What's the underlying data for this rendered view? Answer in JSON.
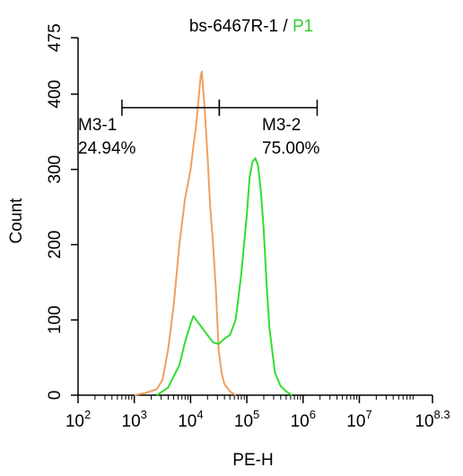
{
  "chart_data": {
    "type": "line",
    "title": "bs-6467R-1",
    "title_separator": " / ",
    "title_highlight": "P1",
    "xlabel": "PE-H",
    "ylabel": "Count",
    "x_scale": "log",
    "xlim": [
      2,
      8.3
    ],
    "ylim": [
      0,
      475
    ],
    "x_ticks": [
      {
        "base": "10",
        "exp": "2"
      },
      {
        "base": "10",
        "exp": "3"
      },
      {
        "base": "10",
        "exp": "4"
      },
      {
        "base": "10",
        "exp": "5"
      },
      {
        "base": "10",
        "exp": "6"
      },
      {
        "base": "10",
        "exp": "7"
      },
      {
        "base": "10",
        "exp": "8.3"
      }
    ],
    "y_ticks": [
      "0",
      "100",
      "200",
      "300",
      "400",
      "475"
    ],
    "grid": false,
    "colors": {
      "orange": "#f0a060",
      "green": "#33dd33",
      "title_highlight": "#33cc33"
    },
    "series": [
      {
        "color": "#f0a060",
        "x": [
          3.0,
          3.2,
          3.4,
          3.5,
          3.6,
          3.7,
          3.8,
          3.9,
          4.0,
          4.05,
          4.1,
          4.15,
          4.18,
          4.2,
          4.25,
          4.3,
          4.35,
          4.4,
          4.45,
          4.5,
          4.55,
          4.6,
          4.7,
          4.8
        ],
        "y": [
          0,
          3,
          8,
          20,
          60,
          120,
          200,
          260,
          300,
          330,
          360,
          400,
          425,
          430,
          380,
          320,
          250,
          200,
          140,
          60,
          30,
          15,
          5,
          0
        ]
      },
      {
        "color": "#33dd33",
        "x": [
          3.4,
          3.6,
          3.8,
          3.9,
          4.0,
          4.05,
          4.1,
          4.15,
          4.2,
          4.25,
          4.3,
          4.4,
          4.5,
          4.6,
          4.7,
          4.8,
          4.9,
          5.0,
          5.05,
          5.1,
          5.15,
          5.2,
          5.25,
          5.3,
          5.35,
          5.4,
          5.5,
          5.6,
          5.7,
          5.8
        ],
        "y": [
          0,
          10,
          40,
          70,
          95,
          105,
          100,
          95,
          90,
          85,
          80,
          70,
          68,
          75,
          80,
          100,
          160,
          240,
          290,
          310,
          315,
          305,
          270,
          220,
          150,
          90,
          30,
          12,
          5,
          0
        ]
      }
    ],
    "gates": [
      {
        "name": "M3-1",
        "percent": "24.94%",
        "x_start": 2.78,
        "x_end": 4.51,
        "y": 382
      },
      {
        "name": "M3-2",
        "percent": "75.00%",
        "x_start": 4.51,
        "x_end": 6.25,
        "y": 382
      }
    ]
  }
}
